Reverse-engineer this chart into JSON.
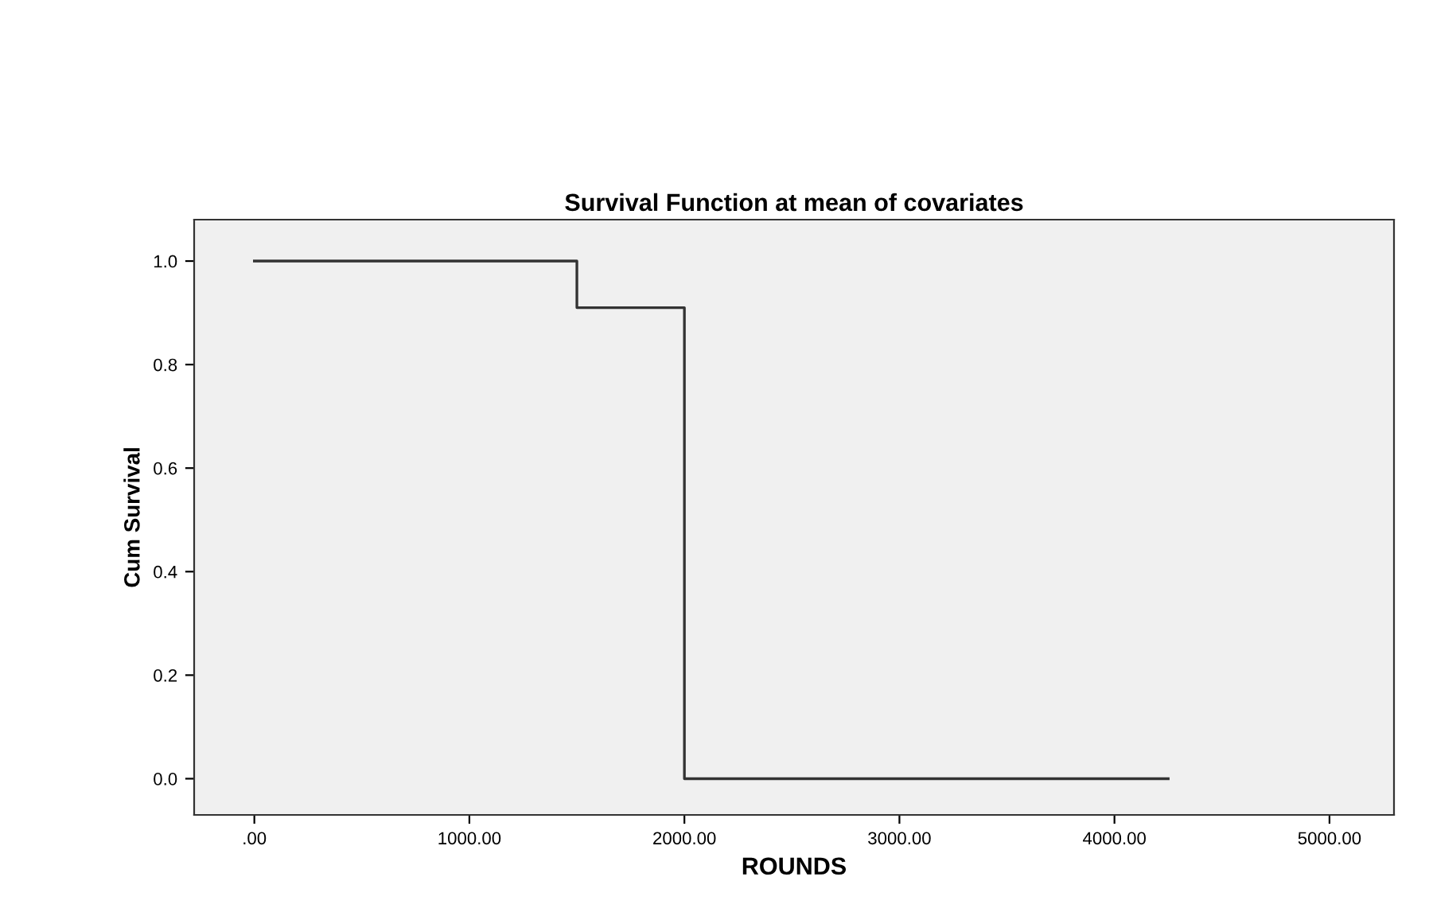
{
  "chart_data": {
    "type": "step",
    "title": "Survival Function at mean of covariates",
    "xlabel": "ROUNDS",
    "ylabel": "Cum Survival",
    "x": [
      0,
      1500,
      2000,
      4250
    ],
    "series": [
      {
        "color": "#333333",
        "values": [
          1.0,
          0.91,
          0.0,
          0.0
        ]
      }
    ],
    "xlim": [
      -280,
      5300
    ],
    "ylim": [
      -0.07,
      1.08
    ],
    "xticks": [
      {
        "value": 0,
        "label": ".00"
      },
      {
        "value": 1000,
        "label": "1000.00"
      },
      {
        "value": 2000,
        "label": "2000.00"
      },
      {
        "value": 3000,
        "label": "3000.00"
      },
      {
        "value": 4000,
        "label": "4000.00"
      },
      {
        "value": 5000,
        "label": "5000.00"
      }
    ],
    "yticks": [
      {
        "value": 0,
        "label": "0.0"
      },
      {
        "value": 0.2,
        "label": "0.2"
      },
      {
        "value": 0.4,
        "label": "0.4"
      },
      {
        "value": 0.6,
        "label": "0.6"
      },
      {
        "value": 0.8,
        "label": "0.8"
      },
      {
        "value": 1.0,
        "label": "1.0"
      }
    ],
    "grid": false
  }
}
